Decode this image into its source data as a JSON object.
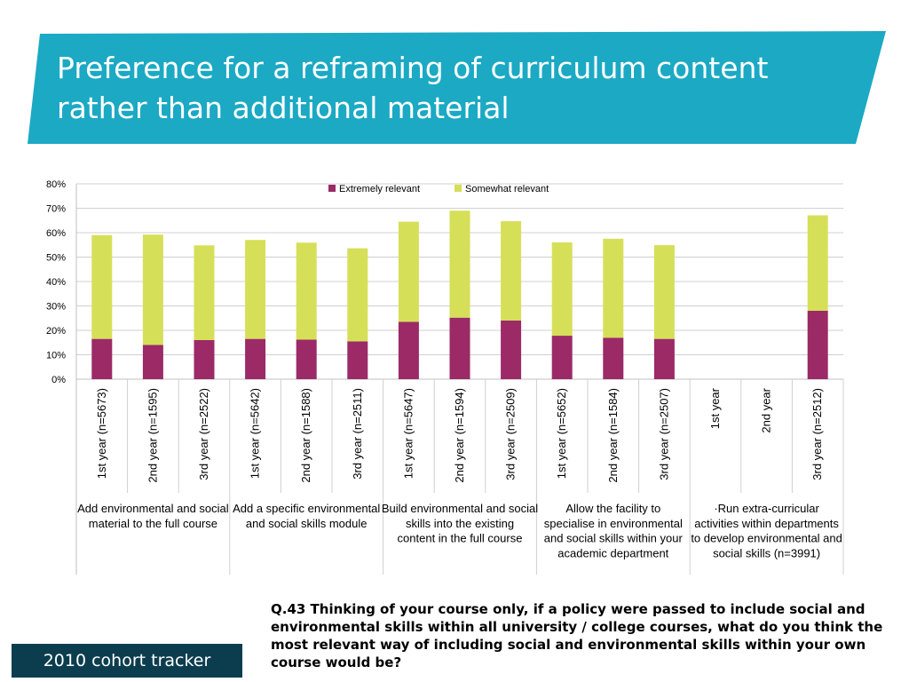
{
  "title": "Preference for a reframing of curriculum content rather than additional material",
  "footer": "2010 cohort tracker",
  "question": "Q.43 Thinking of your course only, if a policy were passed to include social and environmental skills within all university / college courses, what do you think the most relevant way of including social and environmental skills within your own course would be?",
  "colors": {
    "banner": "#1ba9c4",
    "footer": "#0c3d4f",
    "extremely": "#9b2a67",
    "somewhat": "#d6df58"
  },
  "chart_data": {
    "type": "bar",
    "stacked": true,
    "ylim": [
      0,
      80
    ],
    "yticks": [
      "0%",
      "10%",
      "20%",
      "30%",
      "40%",
      "50%",
      "60%",
      "70%",
      "80%"
    ],
    "grid": true,
    "legend_position": "top",
    "categories": [
      "1st year (n=5673)",
      "2nd year (n=1595)",
      "3rd year (n=2522)",
      "1st year (n=5642)",
      "2nd year (n=1588)",
      "3rd year (n=2511)",
      "1st year (n=5647)",
      "2nd year (n=1594)",
      "3rd year (n=2509)",
      "1st year (n=5652)",
      "2nd year (n=1584)",
      "3rd year (n=2507)",
      "1st year",
      "2nd year",
      "3rd year (n=2512)"
    ],
    "groups": [
      "Add environmental and social material to the full course",
      "Add a specific environmental and social skills module",
      "Build environmental and social skills into the existing content in the full course",
      "Allow the facility to specialise in environmental and social skills within your academic department",
      "·Run extra-curricular activities within departments to develop environmental and social skills (n=3991)"
    ],
    "series": [
      {
        "name": "Extremely relevant",
        "values": [
          16.5,
          14,
          16,
          16.5,
          16.2,
          15.5,
          23.5,
          25.2,
          24,
          17.8,
          17,
          16.5,
          null,
          null,
          28
        ]
      },
      {
        "name": "Somewhat relevant",
        "values": [
          42.5,
          45.2,
          38.8,
          40.5,
          39.7,
          38.1,
          41,
          43.8,
          40.7,
          38.2,
          40.5,
          38.4,
          null,
          null,
          39.1
        ]
      }
    ]
  }
}
